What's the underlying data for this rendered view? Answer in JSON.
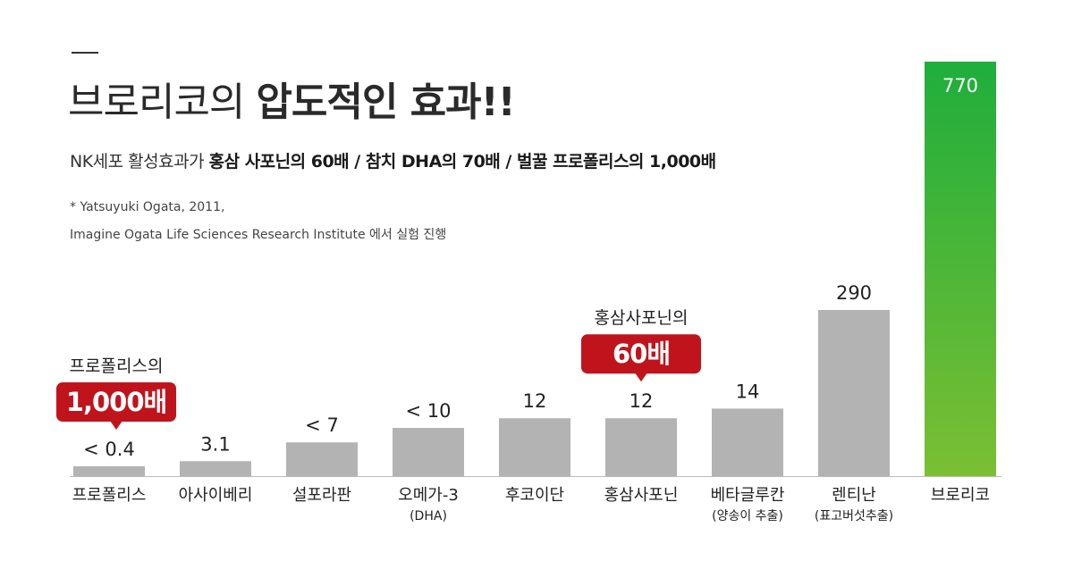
{
  "header": {
    "title_light": "브로리코의 ",
    "title_bold": "압도적인 효과!!",
    "subtitle_prefix": "NK세포 활성효과가 ",
    "subtitle_bold": "홍삼 사포닌의 60배 / 참치 DHA의 70배 / 벌꿀 프로폴리스의 1,000배",
    "note_line1": "* Yatsuyuki Ogata, 2011,",
    "note_line2": "Imagine Ogata Life Sciences Research Institute 에서 실험 진행"
  },
  "colors": {
    "bar_gray": "#b3b3b3",
    "bar_green_top": "#1fae3c",
    "bar_green_bottom": "#7bbf33",
    "callout_red": "#c0141c",
    "text_dark": "#222222"
  },
  "chart_data": {
    "type": "bar",
    "categories": [
      {
        "name": "프로폴리스",
        "sub": ""
      },
      {
        "name": "아사이베리",
        "sub": ""
      },
      {
        "name": "설포라판",
        "sub": ""
      },
      {
        "name": "오메가-3",
        "sub": "(DHA)"
      },
      {
        "name": "후코이단",
        "sub": ""
      },
      {
        "name": "홍삼사포닌",
        "sub": ""
      },
      {
        "name": "베타글루칸",
        "sub": "(양송이 추출)"
      },
      {
        "name": "렌티난",
        "sub": "(표고버섯추출)"
      },
      {
        "name": "브로리코",
        "sub": ""
      }
    ],
    "values": [
      0.4,
      3.1,
      7,
      10,
      12,
      12,
      14,
      290,
      770
    ],
    "value_labels": [
      "< 0.4",
      "3.1",
      "< 7",
      "< 10",
      "12",
      "12",
      "14",
      "290",
      "770"
    ],
    "axis_break": true,
    "highlight_index": 8,
    "callouts": [
      {
        "index": 0,
        "caption": "프로폴리스의",
        "badge": "1,000배"
      },
      {
        "index": 5,
        "caption": "홍삼사포닌의",
        "badge": "60배"
      }
    ]
  }
}
